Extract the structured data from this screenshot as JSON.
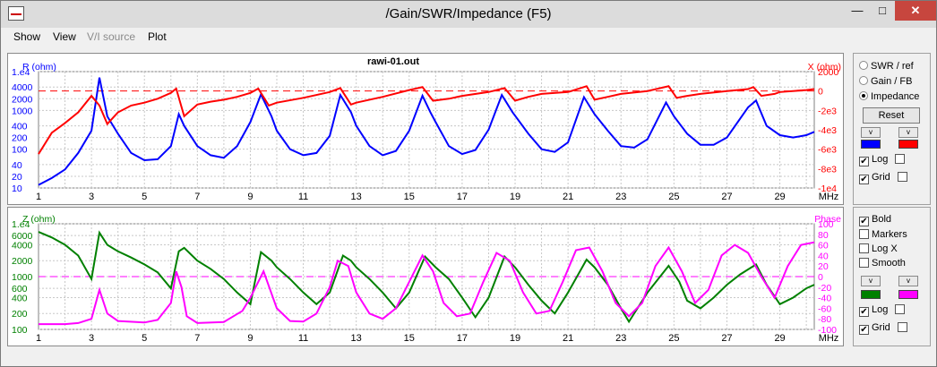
{
  "window": {
    "title": "/Gain/SWR/Impedance (F5)",
    "min_label": "—",
    "max_label": "□",
    "close_label": "✕"
  },
  "menu": {
    "items": [
      "Show",
      "View",
      "V/I source",
      "Plot"
    ]
  },
  "top_chart": {
    "title": "rawi-01.out",
    "left_unit": "R (ohm)",
    "right_unit": "X (ohm)",
    "left_ticks": [
      "1.e4",
      "4000",
      "2000",
      "1000",
      "400",
      "200",
      "100",
      "40",
      "20",
      "10"
    ],
    "right_ticks": [
      "2000",
      "0",
      "-2e3",
      "-4e3",
      "-6e3",
      "-8e3",
      "-1e4"
    ],
    "x_ticks": [
      "1",
      "3",
      "5",
      "7",
      "9",
      "11",
      "13",
      "15",
      "17",
      "19",
      "21",
      "23",
      "25",
      "27",
      "29"
    ],
    "x_unit": "MHz",
    "x_range": [
      1,
      30.3
    ],
    "R_points": [
      [
        1,
        12
      ],
      [
        1.5,
        18
      ],
      [
        2,
        30
      ],
      [
        2.5,
        80
      ],
      [
        3,
        300
      ],
      [
        3.3,
        7000
      ],
      [
        3.6,
        700
      ],
      [
        4,
        250
      ],
      [
        4.5,
        80
      ],
      [
        5,
        52
      ],
      [
        5.5,
        55
      ],
      [
        6,
        120
      ],
      [
        6.3,
        800
      ],
      [
        6.5,
        400
      ],
      [
        7,
        120
      ],
      [
        7.5,
        70
      ],
      [
        8,
        60
      ],
      [
        8.5,
        120
      ],
      [
        9,
        500
      ],
      [
        9.4,
        2600
      ],
      [
        9.8,
        700
      ],
      [
        10,
        300
      ],
      [
        10.5,
        100
      ],
      [
        11,
        70
      ],
      [
        11.5,
        80
      ],
      [
        12,
        220
      ],
      [
        12.4,
        2500
      ],
      [
        12.8,
        900
      ],
      [
        13,
        400
      ],
      [
        13.5,
        120
      ],
      [
        14,
        70
      ],
      [
        14.5,
        90
      ],
      [
        15,
        300
      ],
      [
        15.5,
        2400
      ],
      [
        15.8,
        900
      ],
      [
        16,
        500
      ],
      [
        16.5,
        120
      ],
      [
        17,
        75
      ],
      [
        17.5,
        95
      ],
      [
        18,
        320
      ],
      [
        18.5,
        2500
      ],
      [
        18.9,
        900
      ],
      [
        19.5,
        250
      ],
      [
        20,
        100
      ],
      [
        20.5,
        85
      ],
      [
        21,
        150
      ],
      [
        21.6,
        2200
      ],
      [
        22,
        800
      ],
      [
        22.5,
        300
      ],
      [
        23,
        120
      ],
      [
        23.5,
        110
      ],
      [
        24,
        180
      ],
      [
        24.7,
        1600
      ],
      [
        25,
        700
      ],
      [
        25.5,
        250
      ],
      [
        26,
        130
      ],
      [
        26.5,
        130
      ],
      [
        27,
        200
      ],
      [
        27.8,
        1200
      ],
      [
        28.1,
        1800
      ],
      [
        28.5,
        400
      ],
      [
        29,
        230
      ],
      [
        29.5,
        200
      ],
      [
        30,
        230
      ],
      [
        30.3,
        280
      ]
    ],
    "X_points": [
      [
        1,
        -6500
      ],
      [
        1.5,
        -4300
      ],
      [
        2,
        -3300
      ],
      [
        2.5,
        -2200
      ],
      [
        3,
        -500
      ],
      [
        3.3,
        -1500
      ],
      [
        3.6,
        -3400
      ],
      [
        4,
        -2200
      ],
      [
        4.5,
        -1500
      ],
      [
        5,
        -1200
      ],
      [
        5.5,
        -800
      ],
      [
        6,
        -200
      ],
      [
        6.2,
        250
      ],
      [
        6.5,
        -2600
      ],
      [
        7,
        -1400
      ],
      [
        7.5,
        -1100
      ],
      [
        8,
        -900
      ],
      [
        8.5,
        -600
      ],
      [
        9,
        -200
      ],
      [
        9.3,
        250
      ],
      [
        9.7,
        -1500
      ],
      [
        10,
        -1200
      ],
      [
        11,
        -700
      ],
      [
        12,
        -100
      ],
      [
        12.4,
        300
      ],
      [
        12.8,
        -1400
      ],
      [
        13,
        -1200
      ],
      [
        14,
        -600
      ],
      [
        15,
        100
      ],
      [
        15.5,
        400
      ],
      [
        15.9,
        -1000
      ],
      [
        16.5,
        -800
      ],
      [
        17,
        -500
      ],
      [
        18,
        -100
      ],
      [
        18.6,
        300
      ],
      [
        19,
        -1000
      ],
      [
        19.5,
        -600
      ],
      [
        20,
        -300
      ],
      [
        21,
        -100
      ],
      [
        21.7,
        500
      ],
      [
        22,
        -900
      ],
      [
        22.5,
        -600
      ],
      [
        23,
        -300
      ],
      [
        24,
        0
      ],
      [
        24.8,
        500
      ],
      [
        25.1,
        -700
      ],
      [
        25.5,
        -500
      ],
      [
        26,
        -300
      ],
      [
        27,
        0
      ],
      [
        27.8,
        200
      ],
      [
        28,
        400
      ],
      [
        28.3,
        -500
      ],
      [
        28.8,
        -300
      ],
      [
        29,
        -100
      ],
      [
        30,
        100
      ],
      [
        30.3,
        200
      ]
    ]
  },
  "bottom_chart": {
    "left_unit": "Z (ohm)",
    "right_unit": "Phase",
    "left_ticks": [
      "1.e4",
      "6000",
      "4000",
      "2000",
      "1000",
      "600",
      "400",
      "200",
      "100"
    ],
    "right_ticks": [
      "100",
      "80",
      "60",
      "40",
      "20",
      "0",
      "-20",
      "-40",
      "-60",
      "-80",
      "-100"
    ],
    "x_ticks": [
      "1",
      "3",
      "5",
      "7",
      "9",
      "11",
      "13",
      "15",
      "17",
      "19",
      "21",
      "23",
      "25",
      "27",
      "29"
    ],
    "x_unit": "MHz",
    "x_range": [
      1,
      30.3
    ],
    "Z_points": [
      [
        1,
        7000
      ],
      [
        1.5,
        5500
      ],
      [
        2,
        4000
      ],
      [
        2.5,
        2500
      ],
      [
        3,
        900
      ],
      [
        3.3,
        6800
      ],
      [
        3.6,
        4000
      ],
      [
        4,
        3000
      ],
      [
        4.5,
        2300
      ],
      [
        5,
        1700
      ],
      [
        5.5,
        1200
      ],
      [
        6,
        600
      ],
      [
        6.3,
        3000
      ],
      [
        6.5,
        3500
      ],
      [
        7,
        2000
      ],
      [
        7.5,
        1400
      ],
      [
        8,
        900
      ],
      [
        8.5,
        500
      ],
      [
        9,
        300
      ],
      [
        9.4,
        2900
      ],
      [
        9.8,
        2000
      ],
      [
        10,
        1500
      ],
      [
        10.5,
        900
      ],
      [
        11,
        500
      ],
      [
        11.5,
        300
      ],
      [
        12,
        500
      ],
      [
        12.5,
        2500
      ],
      [
        12.8,
        2000
      ],
      [
        13,
        1500
      ],
      [
        13.5,
        900
      ],
      [
        14,
        500
      ],
      [
        14.5,
        250
      ],
      [
        15,
        500
      ],
      [
        15.6,
        2400
      ],
      [
        16,
        1500
      ],
      [
        16.5,
        900
      ],
      [
        17,
        400
      ],
      [
        17.5,
        170
      ],
      [
        18,
        400
      ],
      [
        18.6,
        2400
      ],
      [
        19,
        1500
      ],
      [
        19.5,
        700
      ],
      [
        20,
        350
      ],
      [
        20.5,
        200
      ],
      [
        21,
        500
      ],
      [
        21.7,
        2100
      ],
      [
        22,
        1500
      ],
      [
        22.5,
        700
      ],
      [
        23,
        250
      ],
      [
        23.3,
        140
      ],
      [
        24,
        500
      ],
      [
        24.8,
        1600
      ],
      [
        25.2,
        800
      ],
      [
        25.5,
        350
      ],
      [
        26,
        250
      ],
      [
        26.5,
        400
      ],
      [
        27,
        700
      ],
      [
        27.5,
        1100
      ],
      [
        28.1,
        1700
      ],
      [
        28.5,
        700
      ],
      [
        29,
        300
      ],
      [
        29.5,
        400
      ],
      [
        30,
        600
      ],
      [
        30.3,
        700
      ]
    ],
    "Phase_points": [
      [
        1,
        -90
      ],
      [
        2,
        -90
      ],
      [
        2.5,
        -88
      ],
      [
        3,
        -80
      ],
      [
        3.3,
        -25
      ],
      [
        3.6,
        -70
      ],
      [
        4,
        -84
      ],
      [
        5,
        -87
      ],
      [
        5.5,
        -82
      ],
      [
        6,
        -50
      ],
      [
        6.2,
        10
      ],
      [
        6.4,
        -20
      ],
      [
        6.6,
        -75
      ],
      [
        7,
        -88
      ],
      [
        8,
        -86
      ],
      [
        8.7,
        -65
      ],
      [
        9,
        -40
      ],
      [
        9.5,
        10
      ],
      [
        10,
        -60
      ],
      [
        10.5,
        -84
      ],
      [
        11,
        -85
      ],
      [
        11.5,
        -70
      ],
      [
        12,
        -20
      ],
      [
        12.3,
        30
      ],
      [
        12.7,
        20
      ],
      [
        13,
        -30
      ],
      [
        13.5,
        -70
      ],
      [
        14,
        -80
      ],
      [
        14.5,
        -60
      ],
      [
        15,
        -10
      ],
      [
        15.5,
        40
      ],
      [
        15.9,
        10
      ],
      [
        16.3,
        -50
      ],
      [
        16.8,
        -75
      ],
      [
        17.3,
        -70
      ],
      [
        17.8,
        -10
      ],
      [
        18.3,
        45
      ],
      [
        18.8,
        30
      ],
      [
        19.3,
        -30
      ],
      [
        19.8,
        -70
      ],
      [
        20.3,
        -65
      ],
      [
        20.8,
        -10
      ],
      [
        21.3,
        50
      ],
      [
        21.8,
        55
      ],
      [
        22.3,
        10
      ],
      [
        22.8,
        -50
      ],
      [
        23.3,
        -75
      ],
      [
        23.8,
        -50
      ],
      [
        24.3,
        20
      ],
      [
        24.8,
        55
      ],
      [
        25.3,
        10
      ],
      [
        25.8,
        -50
      ],
      [
        26.3,
        -25
      ],
      [
        26.8,
        40
      ],
      [
        27.3,
        60
      ],
      [
        27.8,
        45
      ],
      [
        28.3,
        0
      ],
      [
        28.8,
        -40
      ],
      [
        29.3,
        20
      ],
      [
        29.8,
        60
      ],
      [
        30.3,
        65
      ]
    ]
  },
  "controls": {
    "radio_swr": "SWR / ref",
    "radio_gain": "Gain / FB",
    "radio_impedance": "Impedance",
    "reset_label": "Reset",
    "top_log": "Log",
    "top_grid": "Grid",
    "bold": "Bold",
    "markers": "Markers",
    "logx": "Log X",
    "smooth": "Smooth",
    "bottom_log": "Log",
    "bottom_grid": "Grid",
    "spin_label": "v",
    "colors": {
      "R": "#0000ff",
      "X": "#ff0000",
      "Z": "#008000",
      "Phase": "#ff00ff"
    }
  }
}
